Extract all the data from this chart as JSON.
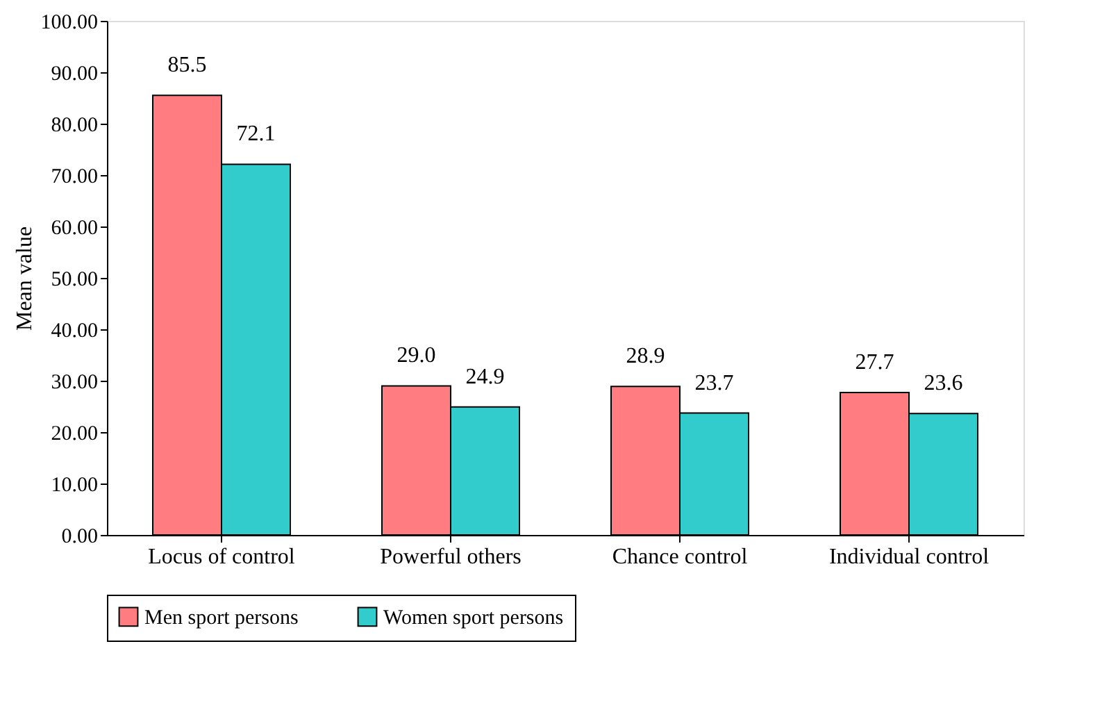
{
  "chart_data": {
    "type": "bar",
    "ylabel": "Mean value",
    "categories": [
      "Locus of control",
      "Powerful others",
      "Chance control",
      "Individual control"
    ],
    "series": [
      {
        "name": "Men sport persons",
        "color": "#ff7c80",
        "values": [
          85.5,
          29.0,
          28.9,
          27.7
        ],
        "value_labels": [
          "85.5",
          "29.0",
          "28.9",
          "27.7"
        ]
      },
      {
        "name": "Women sport persons",
        "color": "#33cccc",
        "values": [
          72.1,
          24.9,
          23.7,
          23.6
        ],
        "value_labels": [
          "72.1",
          "24.9",
          "23.7",
          "23.6"
        ]
      }
    ],
    "ylim": [
      0,
      100
    ],
    "yticks": [
      {
        "value": 0,
        "label": "0.00"
      },
      {
        "value": 10,
        "label": "10.00"
      },
      {
        "value": 20,
        "label": "20.00"
      },
      {
        "value": 30,
        "label": "30.00"
      },
      {
        "value": 40,
        "label": "40.00"
      },
      {
        "value": 50,
        "label": "50.00"
      },
      {
        "value": 60,
        "label": "60.00"
      },
      {
        "value": 70,
        "label": "70.00"
      },
      {
        "value": 80,
        "label": "80.00"
      },
      {
        "value": 90,
        "label": "90.00"
      },
      {
        "value": 100,
        "label": "100.00"
      }
    ],
    "grid": false,
    "legend": "bottom"
  }
}
